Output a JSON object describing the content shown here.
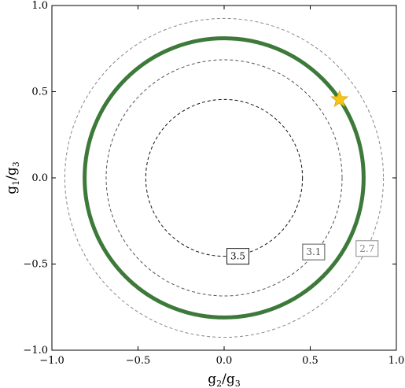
{
  "chart_data": {
    "type": "contour",
    "xlabel": "g2/g3",
    "ylabel": "g1/g3",
    "xlim": [
      -1.0,
      1.0
    ],
    "ylim": [
      -1.0,
      1.0
    ],
    "x_ticks": [
      {
        "value": -1.0,
        "label": "−1.0"
      },
      {
        "value": -0.5,
        "label": "−0.5"
      },
      {
        "value": 0.0,
        "label": "0.0"
      },
      {
        "value": 0.5,
        "label": "0.5"
      },
      {
        "value": 1.0,
        "label": "1.0"
      }
    ],
    "y_ticks": [
      {
        "value": -1.0,
        "label": "−1.0"
      },
      {
        "value": -0.5,
        "label": "−0.5"
      },
      {
        "value": 0.0,
        "label": "0.0"
      },
      {
        "value": 0.5,
        "label": "0.5"
      },
      {
        "value": 1.0,
        "label": "1.0"
      }
    ],
    "grid": false,
    "contours": [
      {
        "level_label": "3.5",
        "radius": 0.455,
        "style": "dashed",
        "color": "#111111",
        "label_at": [
          0.08,
          -0.455
        ]
      },
      {
        "level_label": "3.1",
        "radius": 0.685,
        "style": "dashed",
        "color": "#555555",
        "label_at": [
          0.52,
          -0.43
        ]
      },
      {
        "level_label": "2.7",
        "radius": 0.925,
        "style": "dashed",
        "color": "#888888",
        "label_at": [
          0.83,
          -0.41
        ]
      }
    ],
    "highlight_curve": {
      "type": "circle",
      "radius": 0.81,
      "color": "#3d7a3a",
      "style": "solid"
    },
    "marker": {
      "shape": "star",
      "x": 0.67,
      "y": 0.455,
      "color": "#f5c518"
    }
  }
}
